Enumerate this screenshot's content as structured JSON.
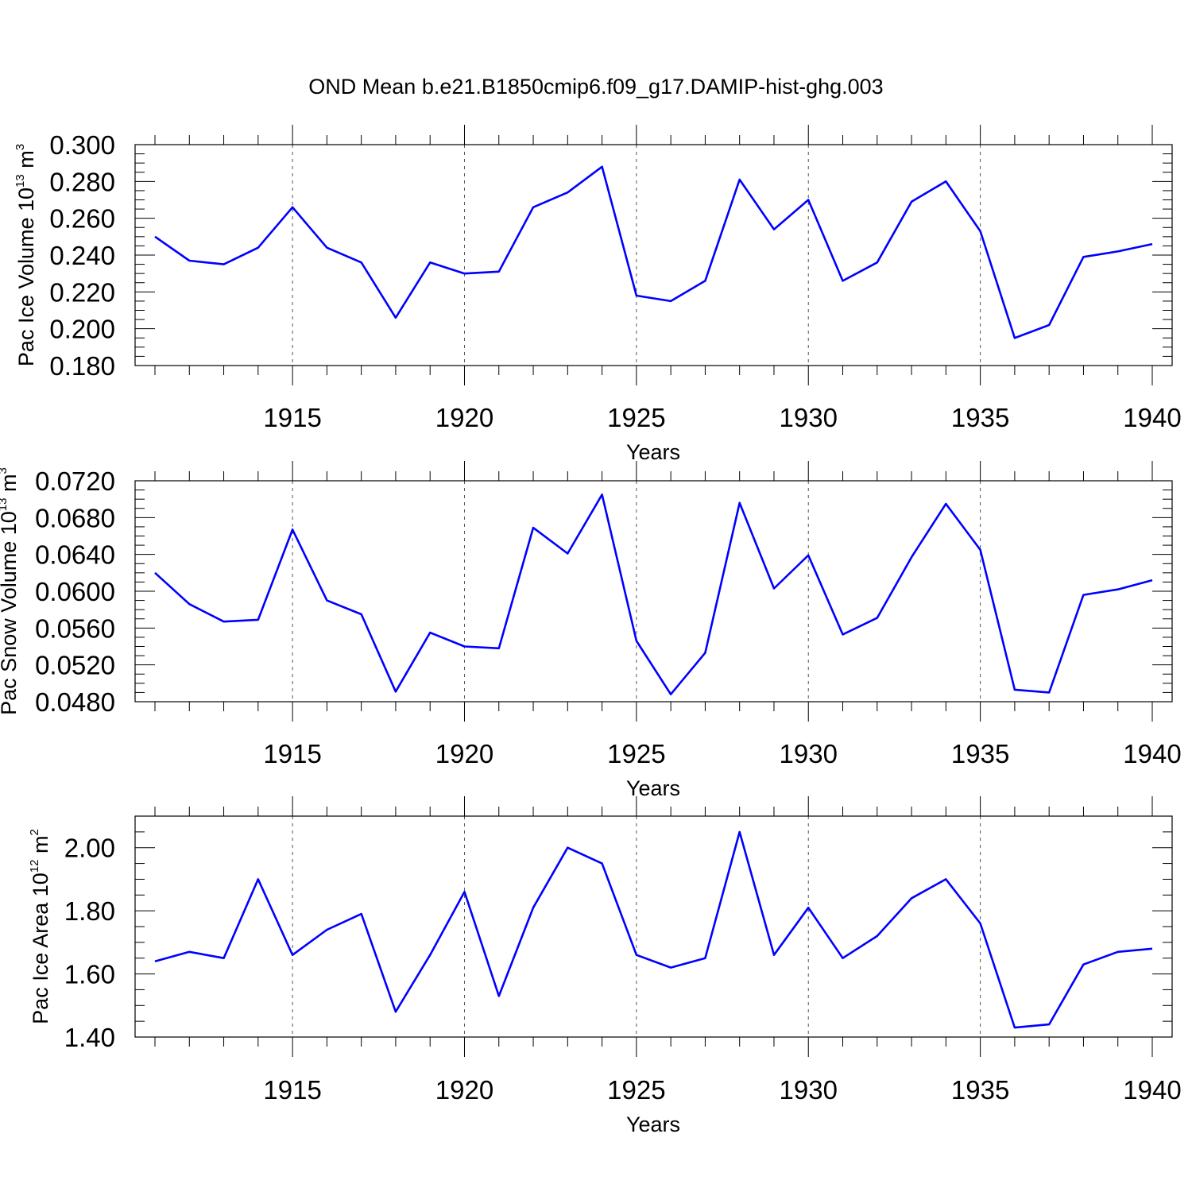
{
  "title": "OND Mean b.e21.B1850cmip6.f09_g17.DAMIP-hist-ghg.003",
  "colors": {
    "series": "#0000ff",
    "axes": "#000000",
    "grid": "#555555"
  },
  "chart_data": [
    {
      "type": "line",
      "ylabel": {
        "text": "Pac Ice Volume 10",
        "sup": "13",
        "unit": " m",
        "unit_sup": "3"
      },
      "xlabel": "Years",
      "xlim": [
        1911,
        1940
      ],
      "ylim": [
        0.18,
        0.3
      ],
      "yticks": [
        0.18,
        0.2,
        0.22,
        0.24,
        0.26,
        0.28,
        0.3
      ],
      "ytick_labels": [
        "0.180",
        "0.200",
        "0.220",
        "0.240",
        "0.260",
        "0.280",
        "0.300"
      ],
      "xticks": [
        1915,
        1920,
        1925,
        1930,
        1935,
        1940
      ],
      "xtick_labels": [
        "1915",
        "1920",
        "1925",
        "1930",
        "1935",
        "1940"
      ],
      "grid": "vertical dashed at major x ticks",
      "series": [
        {
          "x": [
            1911,
            1912,
            1913,
            1914,
            1915,
            1916,
            1917,
            1918,
            1919,
            1920,
            1921,
            1922,
            1923,
            1924,
            1925,
            1926,
            1927,
            1928,
            1929,
            1930,
            1931,
            1932,
            1933,
            1934,
            1935,
            1936,
            1937,
            1938,
            1939,
            1940
          ],
          "values": [
            0.25,
            0.237,
            0.235,
            0.244,
            0.266,
            0.244,
            0.236,
            0.206,
            0.236,
            0.23,
            0.231,
            0.266,
            0.274,
            0.288,
            0.218,
            0.215,
            0.226,
            0.281,
            0.254,
            0.27,
            0.226,
            0.236,
            0.269,
            0.28,
            0.253,
            0.195,
            0.202,
            0.239,
            0.242,
            0.246
          ]
        }
      ]
    },
    {
      "type": "line",
      "ylabel": {
        "text": "Pac Snow Volume 10",
        "sup": "13",
        "unit": " m",
        "unit_sup": "3"
      },
      "xlabel": "Years",
      "xlim": [
        1911,
        1940
      ],
      "ylim": [
        0.048,
        0.072
      ],
      "yticks": [
        0.048,
        0.052,
        0.056,
        0.06,
        0.064,
        0.068,
        0.072
      ],
      "ytick_labels": [
        "0.0480",
        "0.0520",
        "0.0560",
        "0.0600",
        "0.0640",
        "0.0680",
        "0.0720"
      ],
      "xticks": [
        1915,
        1920,
        1925,
        1930,
        1935,
        1940
      ],
      "xtick_labels": [
        "1915",
        "1920",
        "1925",
        "1930",
        "1935",
        "1940"
      ],
      "grid": "vertical dashed at major x ticks",
      "series": [
        {
          "x": [
            1911,
            1912,
            1913,
            1914,
            1915,
            1916,
            1917,
            1918,
            1919,
            1920,
            1921,
            1922,
            1923,
            1924,
            1925,
            1926,
            1927,
            1928,
            1929,
            1930,
            1931,
            1932,
            1933,
            1934,
            1935,
            1936,
            1937,
            1938,
            1939,
            1940
          ],
          "values": [
            0.062,
            0.0586,
            0.0567,
            0.0569,
            0.0667,
            0.059,
            0.0575,
            0.0491,
            0.0555,
            0.054,
            0.0538,
            0.0669,
            0.0641,
            0.0705,
            0.0546,
            0.0488,
            0.0533,
            0.0696,
            0.0603,
            0.0639,
            0.0553,
            0.0571,
            0.0637,
            0.0695,
            0.0645,
            0.0493,
            0.049,
            0.0596,
            0.0602,
            0.0612
          ]
        }
      ]
    },
    {
      "type": "line",
      "ylabel": {
        "text": "Pac Ice Area 10",
        "sup": "12",
        "unit": " m",
        "unit_sup": "2"
      },
      "xlabel": "Years",
      "xlim": [
        1911,
        1940
      ],
      "ylim": [
        1.4,
        2.1
      ],
      "yticks": [
        1.4,
        1.6,
        1.8,
        2.0
      ],
      "ytick_labels": [
        "1.40",
        "1.60",
        "1.80",
        "2.00"
      ],
      "xticks": [
        1915,
        1920,
        1925,
        1930,
        1935,
        1940
      ],
      "xtick_labels": [
        "1915",
        "1920",
        "1925",
        "1930",
        "1935",
        "1940"
      ],
      "grid": "vertical dashed at major x ticks",
      "series": [
        {
          "x": [
            1911,
            1912,
            1913,
            1914,
            1915,
            1916,
            1917,
            1918,
            1919,
            1920,
            1921,
            1922,
            1923,
            1924,
            1925,
            1926,
            1927,
            1928,
            1929,
            1930,
            1931,
            1932,
            1933,
            1934,
            1935,
            1936,
            1937,
            1938,
            1939,
            1940
          ],
          "values": [
            1.64,
            1.67,
            1.65,
            1.9,
            1.66,
            1.74,
            1.79,
            1.48,
            1.66,
            1.86,
            1.53,
            1.81,
            2.0,
            1.95,
            1.66,
            1.62,
            1.65,
            2.05,
            1.66,
            1.81,
            1.65,
            1.72,
            1.84,
            1.9,
            1.76,
            1.43,
            1.44,
            1.63,
            1.67,
            1.68
          ]
        }
      ]
    }
  ]
}
